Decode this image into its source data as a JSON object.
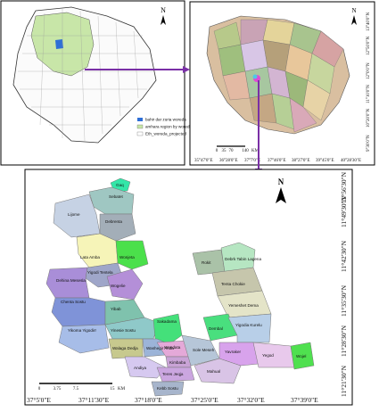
{
  "overview_map": {
    "north": "N",
    "legend": [
      "bahir dar zuria woreda",
      "amhara region by woreda",
      "Eth_woreda_projected"
    ]
  },
  "region_map": {
    "north": "N",
    "scale_labels": [
      "0",
      "35",
      "70",
      "140",
      "KM"
    ],
    "x_labels": [
      "35°47'0\"E",
      "36°28'0\"E",
      "37°7'0\"E",
      "37°46'0\"E",
      "38°27'0\"E",
      "39°45'0\"E",
      "40°28'30\"E"
    ],
    "y_labels": [
      "9°30'0\"N",
      "10°20'0\"N",
      "11°10'0\"N",
      "12°0'0\"N",
      "12°50'0\"N",
      "13°40'0\"N"
    ]
  },
  "detail_map": {
    "north": "N",
    "scale_labels": [
      "0",
      "3.75",
      "7.5",
      "15",
      "KM"
    ],
    "x_labels": [
      "37°5'0\"E",
      "37°11'30\"E",
      "37°18'0\"E",
      "37°25'0\"E",
      "37°32'0\"E",
      "37°39'0\"E"
    ],
    "y_labels": [
      "11°21'30\"N",
      "11°28'30\"N",
      "11°35'30\"N",
      "11°42'30\"N",
      "11°49'30\"N",
      "11°56'30\"N"
    ],
    "woredas": [
      "Gaq",
      "Sebatet",
      "Lijome",
      "Debrenta",
      "Lata Amba",
      "Wonjeta",
      "Yigodi Tentela",
      "Dehina Mesesla",
      "Wogelie",
      "Chenta Sostu",
      "Yibab",
      "Yikoma Yigodirr",
      "Yinesie Sostu",
      "Sakadama",
      "Wendata",
      "Walaga Dedja",
      "Washegir Anda",
      "Kimbaba",
      "Andiya",
      "Teres Jeqja",
      "Kebb Sostu",
      "Rokit",
      "Debrk Tabin Lagena",
      "Tenta Chokie",
      "Yemeshet Dema",
      "Dembal",
      "Yigodia Kurelu",
      "Sole Meseh",
      "Mahual",
      "Yavraker",
      "Yegod",
      "Wojel"
    ]
  }
}
